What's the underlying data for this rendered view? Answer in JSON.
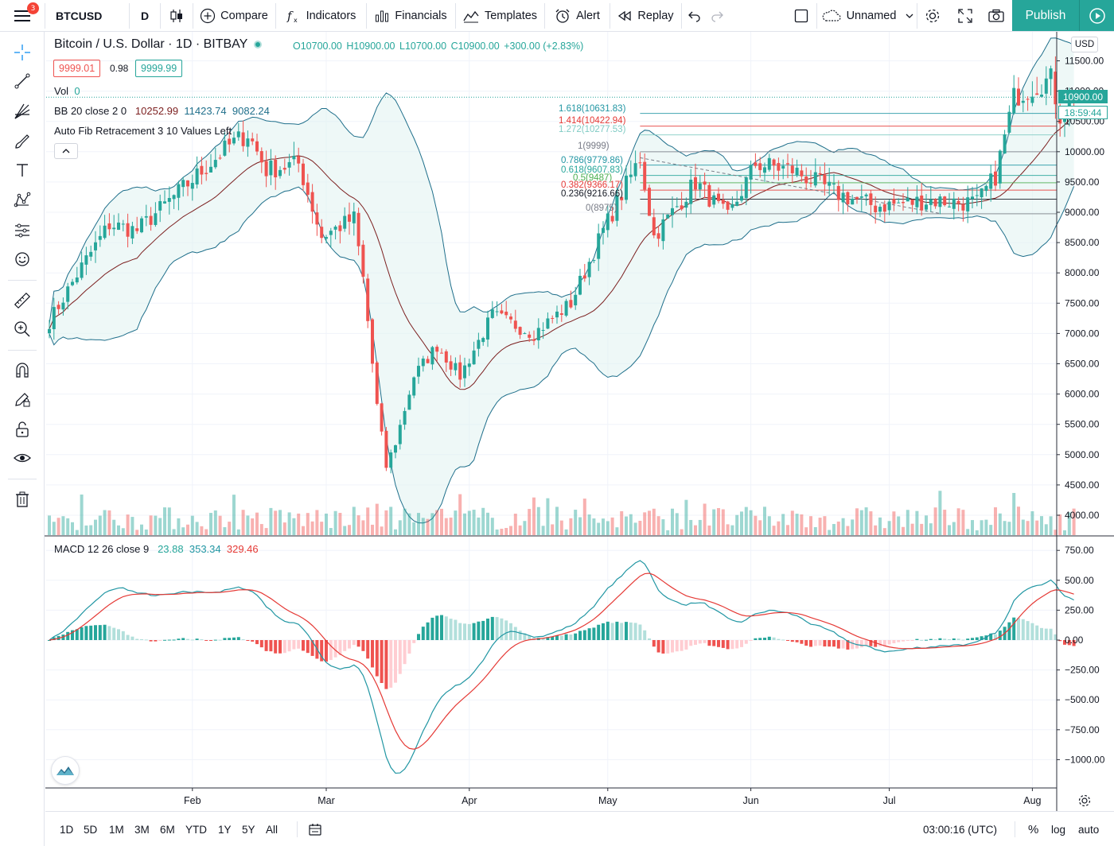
{
  "toolbar": {
    "menu_badge": "3",
    "symbol": "BTCUSD",
    "interval": "D",
    "compare_label": "Compare",
    "indicators_label": "Indicators",
    "financials_label": "Financials",
    "templates_label": "Templates",
    "alert_label": "Alert",
    "replay_label": "Replay",
    "layout_name": "Unnamed",
    "publish_label": "Publish"
  },
  "legend": {
    "title": "Bitcoin / U.S. Dollar · 1D · BITBAY",
    "open": "O10700.00",
    "high": "H10900.00",
    "low": "L10700.00",
    "close": "C10900.00",
    "change": "+300.00 (+2.83%)",
    "bid": "9999.01",
    "spread": "0.98",
    "ask": "9999.99",
    "vol_label": "Vol",
    "vol_value": "0",
    "bb_label": "BB 20 close 2 0",
    "bb_basis": "10252.99",
    "bb_upper": "11423.74",
    "bb_lower": "9082.24",
    "fib_label": "Auto Fib Retracement 3 10 Values Left",
    "macd_label": "MACD 12 26 close 9",
    "macd_hist": "23.88",
    "macd_line": "353.34",
    "macd_signal": "329.46"
  },
  "fib_labels": [
    {
      "text": "1.618(10631.83)",
      "color": "#2196a3"
    },
    {
      "text": "1.414(10422.94)",
      "color": "#e53935"
    },
    {
      "text": "1.272(10277.53)",
      "color": "#80cbc4"
    },
    {
      "text": "1(9999)",
      "color": "#787b86"
    },
    {
      "text": "0.786(9779.86)",
      "color": "#2196a3"
    },
    {
      "text": "0.618(9607.83)",
      "color": "#26a69a"
    },
    {
      "text": "0.5(9487)",
      "color": "#4caf50"
    },
    {
      "text": "0.382(9366.17)",
      "color": "#e53935"
    },
    {
      "text": "0.236(9216.66)",
      "color": "#131722"
    },
    {
      "text": "0(8975)",
      "color": "#787b86"
    }
  ],
  "price_axis": {
    "currency": "USD",
    "last_price": "10900.00",
    "countdown": "18:59:44",
    "price_ticks": [
      "11500.00",
      "11000.00",
      "10500.00",
      "10000.00",
      "9500.00",
      "9000.00",
      "8500.00",
      "8000.00",
      "7500.00",
      "7000.00",
      "6500.00",
      "6000.00",
      "5500.00",
      "5000.00",
      "4500.00",
      "4000.00"
    ],
    "macd_ticks": [
      "750.00",
      "500.00",
      "250.00",
      "0.00",
      "−250.00",
      "−500.00",
      "−750.00",
      "−1000.00"
    ]
  },
  "time_axis": {
    "labels": [
      "Feb",
      "Mar",
      "Apr",
      "May",
      "Jun",
      "Jul",
      "Aug"
    ]
  },
  "bottom": {
    "ranges": [
      "1D",
      "5D",
      "1M",
      "3M",
      "6M",
      "YTD",
      "1Y",
      "5Y",
      "All"
    ],
    "clock": "03:00:16 (UTC)",
    "percent": "%",
    "log": "log",
    "auto": "auto"
  },
  "chart_data": {
    "type": "candlestick",
    "symbol": "BTCUSD",
    "interval": "1D",
    "x_range": [
      "2020-01-01",
      "2020-08-10"
    ],
    "ylim": [
      3700,
      11700
    ],
    "macd_ylim": [
      -1150,
      850
    ],
    "anchors": [
      {
        "date": "2020-01-01",
        "close": 7200
      },
      {
        "date": "2020-01-08",
        "close": 8100
      },
      {
        "date": "2020-01-14",
        "close": 8800
      },
      {
        "date": "2020-01-20",
        "close": 8700
      },
      {
        "date": "2020-01-30",
        "close": 9400
      },
      {
        "date": "2020-02-09",
        "close": 10100
      },
      {
        "date": "2020-02-13",
        "close": 10300
      },
      {
        "date": "2020-02-17",
        "close": 9700
      },
      {
        "date": "2020-02-24",
        "close": 9800
      },
      {
        "date": "2020-02-29",
        "close": 8600
      },
      {
        "date": "2020-03-07",
        "close": 8900
      },
      {
        "date": "2020-03-09",
        "close": 7900
      },
      {
        "date": "2020-03-12",
        "close": 5800
      },
      {
        "date": "2020-03-14",
        "close": 4800
      },
      {
        "date": "2020-03-16",
        "close": 5200
      },
      {
        "date": "2020-03-20",
        "close": 6300
      },
      {
        "date": "2020-03-25",
        "close": 6800
      },
      {
        "date": "2020-03-30",
        "close": 6300
      },
      {
        "date": "2020-04-06",
        "close": 7300
      },
      {
        "date": "2020-04-15",
        "close": 7000
      },
      {
        "date": "2020-04-23",
        "close": 7500
      },
      {
        "date": "2020-04-30",
        "close": 8700
      },
      {
        "date": "2020-05-08",
        "close": 9900
      },
      {
        "date": "2020-05-11",
        "close": 8600
      },
      {
        "date": "2020-05-20",
        "close": 9500
      },
      {
        "date": "2020-05-27",
        "close": 8900
      },
      {
        "date": "2020-06-02",
        "close": 9800
      },
      {
        "date": "2020-06-10",
        "close": 9700
      },
      {
        "date": "2020-06-20",
        "close": 9300
      },
      {
        "date": "2020-06-28",
        "close": 9100
      },
      {
        "date": "2020-07-10",
        "close": 9200
      },
      {
        "date": "2020-07-20",
        "close": 9150
      },
      {
        "date": "2020-07-24",
        "close": 9600
      },
      {
        "date": "2020-07-28",
        "close": 10900
      },
      {
        "date": "2020-08-02",
        "close": 11100
      },
      {
        "date": "2020-08-05",
        "close": 11200
      },
      {
        "date": "2020-08-07",
        "close": 10600
      },
      {
        "date": "2020-08-10",
        "close": 10900
      }
    ],
    "indicators": [
      "Volume",
      "Bollinger Bands (20, 2)",
      "Auto Fib Retracement",
      "MACD (12, 26, 9)"
    ]
  },
  "colors": {
    "up": "#26a69a",
    "down": "#ef5350",
    "accent": "#26a69a",
    "bb_fill": "#e0f2f1",
    "bb_band": "#1f6f8b",
    "bb_basis": "#7b1e1e",
    "macd_line": "#2196a3",
    "signal_line": "#e53935"
  }
}
